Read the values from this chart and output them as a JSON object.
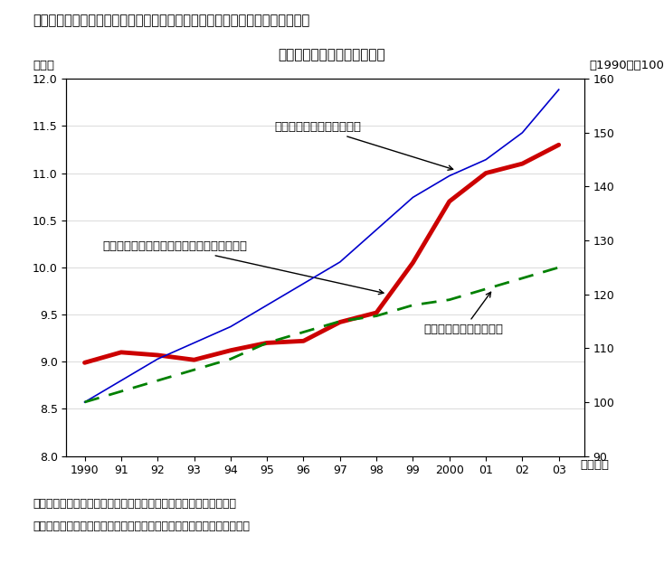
{
  "title_main": "第３－２－８図　ＳＮＡベースの現実最終消費に占める保健・医療消費の推移",
  "title_sub": "高まる保健・医療消費の割合",
  "xlabel": "（年度）",
  "ylabel_left": "（％）",
  "ylabel_right": "（1990年＝100）",
  "ylim_left": [
    8.0,
    12.0
  ],
  "ylim_right": [
    90,
    160
  ],
  "years": [
    1990,
    1991,
    1992,
    1993,
    1994,
    1995,
    1996,
    1997,
    1998,
    1999,
    2000,
    2001,
    2002,
    2003
  ],
  "ratio": [
    8.99,
    9.1,
    9.07,
    9.02,
    9.12,
    9.2,
    9.22,
    9.42,
    9.52,
    10.05,
    10.7,
    11.0,
    11.1,
    11.3
  ],
  "health_index": [
    100,
    104,
    108,
    111,
    114,
    118,
    122,
    126,
    132,
    138,
    142,
    145,
    150,
    158
  ],
  "actual_consumption_index": [
    100,
    102,
    104,
    106,
    108,
    111,
    113,
    115,
    116,
    118,
    119,
    121,
    123,
    125
  ],
  "background_color": "#ffffff",
  "ratio_color": "#cc0000",
  "health_index_color": "#0000cc",
  "actual_consumption_color": "#008000",
  "note_line1": "（備考）　１．内閣府「国民経済計算」により作成。実質ベース。",
  "note_line2": "　　　　　２．保健・医療消費は一般政府からの移転分を含めている。",
  "annotation_health": "保健・医療消費（目盛右）",
  "annotation_ratio": "現実最終消費に占める保健・医療消費の割合",
  "annotation_actual": "現実最終消費（目盛右）",
  "xtick_labels": [
    "1990",
    "91",
    "92",
    "93",
    "94",
    "95",
    "96",
    "97",
    "98",
    "99",
    "2000",
    "01",
    "02",
    "03"
  ]
}
